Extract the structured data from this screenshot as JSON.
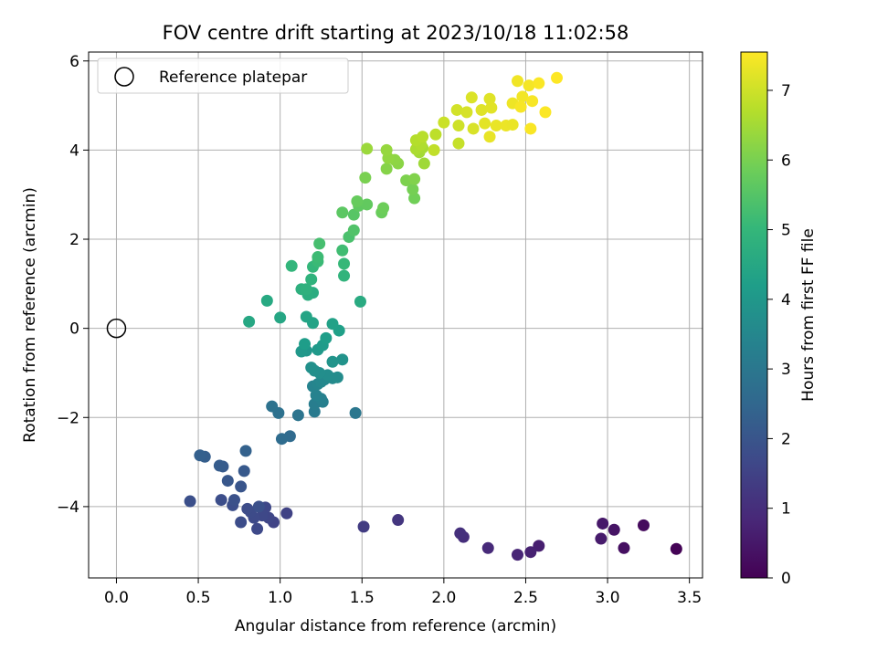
{
  "chart_data": {
    "type": "scatter",
    "title": "FOV centre drift starting at 2023/10/18 11:02:58",
    "xlabel": "Angular distance from reference (arcmin)",
    "ylabel": "Rotation from reference (arcmin)",
    "xlim": [
      -0.17,
      3.58
    ],
    "ylim": [
      -5.6,
      6.2
    ],
    "xticks": [
      "0.0",
      "0.5",
      "1.0",
      "1.5",
      "2.0",
      "2.5",
      "3.0",
      "3.5"
    ],
    "xtick_values": [
      0,
      0.5,
      1.0,
      1.5,
      2.0,
      2.5,
      3.0,
      3.5
    ],
    "yticks": [
      "−4",
      "−2",
      "0",
      "2",
      "4",
      "6"
    ],
    "ytick_values": [
      -4,
      -2,
      0,
      2,
      4,
      6
    ],
    "grid": true,
    "legend": {
      "position": "top-left",
      "entries": [
        "Reference platepar"
      ]
    },
    "reference_point": {
      "x": 0.0,
      "y": 0.0
    },
    "colorbar": {
      "label": "Hours from first FF file",
      "range": [
        0,
        7.55
      ],
      "ticks": [
        "0",
        "1",
        "2",
        "3",
        "4",
        "5",
        "6",
        "7"
      ],
      "tick_values": [
        0,
        1,
        2,
        3,
        4,
        5,
        6,
        7
      ],
      "colormap": "viridis",
      "colors": [
        "#440154",
        "#482878",
        "#3e4989",
        "#31688e",
        "#26828e",
        "#1f9e89",
        "#35b779",
        "#6ece58",
        "#b5de2b",
        "#fde725"
      ]
    },
    "points": [
      [
        3.42,
        -4.95,
        0.05
      ],
      [
        3.22,
        -4.42,
        0.2
      ],
      [
        3.1,
        -4.93,
        0.3
      ],
      [
        3.04,
        -4.52,
        0.4
      ],
      [
        2.97,
        -4.38,
        0.5
      ],
      [
        2.96,
        -4.72,
        0.55
      ],
      [
        2.58,
        -4.88,
        0.65
      ],
      [
        2.53,
        -5.02,
        0.7
      ],
      [
        2.45,
        -5.08,
        0.8
      ],
      [
        2.27,
        -4.93,
        0.9
      ],
      [
        2.12,
        -4.68,
        1.0
      ],
      [
        2.1,
        -4.6,
        1.05
      ],
      [
        1.72,
        -4.3,
        1.2
      ],
      [
        1.51,
        -4.45,
        1.35
      ],
      [
        1.04,
        -4.15,
        1.5
      ],
      [
        0.96,
        -4.35,
        1.55
      ],
      [
        0.93,
        -4.25,
        1.6
      ],
      [
        0.91,
        -4.02,
        1.62
      ],
      [
        0.89,
        -4.2,
        1.65
      ],
      [
        0.86,
        -4.5,
        1.68
      ],
      [
        0.84,
        -4.25,
        1.7
      ],
      [
        0.82,
        -4.12,
        1.72
      ],
      [
        0.8,
        -4.05,
        1.75
      ],
      [
        0.76,
        -4.35,
        1.78
      ],
      [
        0.71,
        -3.97,
        1.8
      ],
      [
        0.64,
        -3.85,
        1.82
      ],
      [
        0.45,
        -3.88,
        1.85
      ],
      [
        0.87,
        -4.0,
        1.88
      ],
      [
        0.72,
        -3.85,
        1.9
      ],
      [
        0.76,
        -3.55,
        2.0
      ],
      [
        0.68,
        -3.42,
        2.05
      ],
      [
        0.78,
        -3.2,
        2.1
      ],
      [
        0.65,
        -3.1,
        2.15
      ],
      [
        0.63,
        -3.08,
        2.2
      ],
      [
        0.54,
        -2.88,
        2.25
      ],
      [
        0.51,
        -2.85,
        2.3
      ],
      [
        0.79,
        -2.75,
        2.35
      ],
      [
        1.06,
        -2.42,
        2.6
      ],
      [
        1.01,
        -2.48,
        2.65
      ],
      [
        0.99,
        -1.9,
        2.8
      ],
      [
        0.95,
        -1.75,
        2.85
      ],
      [
        1.11,
        -1.95,
        2.9
      ],
      [
        1.46,
        -1.9,
        3.0
      ],
      [
        1.21,
        -1.87,
        3.1
      ],
      [
        1.21,
        -1.7,
        3.2
      ],
      [
        1.26,
        -1.65,
        3.25
      ],
      [
        1.25,
        -1.58,
        3.3
      ],
      [
        1.22,
        -1.5,
        3.35
      ],
      [
        1.2,
        -1.3,
        3.4
      ],
      [
        1.23,
        -1.25,
        3.45
      ],
      [
        1.25,
        -1.2,
        3.5
      ],
      [
        1.27,
        -1.15,
        3.55
      ],
      [
        1.32,
        -1.12,
        3.6
      ],
      [
        1.35,
        -1.1,
        3.65
      ],
      [
        1.29,
        -1.05,
        3.7
      ],
      [
        1.24,
        -1.0,
        3.72
      ],
      [
        1.21,
        -0.95,
        3.75
      ],
      [
        1.19,
        -0.88,
        3.78
      ],
      [
        1.38,
        -0.7,
        3.85
      ],
      [
        1.32,
        -0.75,
        3.88
      ],
      [
        1.16,
        -0.5,
        3.95
      ],
      [
        1.13,
        -0.52,
        4.0
      ],
      [
        1.23,
        -0.48,
        4.05
      ],
      [
        1.26,
        -0.38,
        4.1
      ],
      [
        1.15,
        -0.35,
        4.15
      ],
      [
        1.28,
        -0.22,
        4.2
      ],
      [
        1.36,
        -0.05,
        4.25
      ],
      [
        1.32,
        0.1,
        4.3
      ],
      [
        1.2,
        0.12,
        4.35
      ],
      [
        1.16,
        0.26,
        4.4
      ],
      [
        1.0,
        0.24,
        4.45
      ],
      [
        0.81,
        0.15,
        4.5
      ],
      [
        0.92,
        0.62,
        4.55
      ],
      [
        1.49,
        0.6,
        4.6
      ],
      [
        1.2,
        0.8,
        4.65
      ],
      [
        1.17,
        0.75,
        4.7
      ],
      [
        1.13,
        0.88,
        4.75
      ],
      [
        1.16,
        0.88,
        4.8
      ],
      [
        1.19,
        1.1,
        4.85
      ],
      [
        1.39,
        1.18,
        4.9
      ],
      [
        1.07,
        1.4,
        4.95
      ],
      [
        1.2,
        1.38,
        5.0
      ],
      [
        1.39,
        1.45,
        5.05
      ],
      [
        1.23,
        1.5,
        5.1
      ],
      [
        1.23,
        1.6,
        5.15
      ],
      [
        1.38,
        1.75,
        5.2
      ],
      [
        1.24,
        1.9,
        5.3
      ],
      [
        1.42,
        2.05,
        5.35
      ],
      [
        1.45,
        2.2,
        5.45
      ],
      [
        1.45,
        2.55,
        5.55
      ],
      [
        1.38,
        2.6,
        5.6
      ],
      [
        1.48,
        2.75,
        5.65
      ],
      [
        1.53,
        2.78,
        5.7
      ],
      [
        1.47,
        2.85,
        5.75
      ],
      [
        1.62,
        2.6,
        5.8
      ],
      [
        1.63,
        2.7,
        5.85
      ],
      [
        1.82,
        2.92,
        5.9
      ],
      [
        1.81,
        3.12,
        5.95
      ],
      [
        1.52,
        3.38,
        6.0
      ],
      [
        1.77,
        3.32,
        6.05
      ],
      [
        1.82,
        3.35,
        6.1
      ],
      [
        1.65,
        3.58,
        6.15
      ],
      [
        1.72,
        3.7,
        6.2
      ],
      [
        1.7,
        3.78,
        6.25
      ],
      [
        1.66,
        3.82,
        6.3
      ],
      [
        1.65,
        4.0,
        6.35
      ],
      [
        1.53,
        4.03,
        6.4
      ],
      [
        1.88,
        3.7,
        6.45
      ],
      [
        1.85,
        3.95,
        6.5
      ],
      [
        1.87,
        4.05,
        6.55
      ],
      [
        1.83,
        4.02,
        6.6
      ],
      [
        1.86,
        4.12,
        6.65
      ],
      [
        1.83,
        4.22,
        6.7
      ],
      [
        1.87,
        4.3,
        6.75
      ],
      [
        1.95,
        4.35,
        6.8
      ],
      [
        1.94,
        4.0,
        6.85
      ],
      [
        2.09,
        4.15,
        6.9
      ],
      [
        2.0,
        4.62,
        6.95
      ],
      [
        2.09,
        4.55,
        7.0
      ],
      [
        2.08,
        4.9,
        7.05
      ],
      [
        2.14,
        4.85,
        7.1
      ],
      [
        2.17,
        5.18,
        7.15
      ],
      [
        2.28,
        5.15,
        7.2
      ],
      [
        2.25,
        4.6,
        7.25
      ],
      [
        2.28,
        4.3,
        7.3
      ],
      [
        2.32,
        4.55,
        7.32
      ],
      [
        2.38,
        4.55,
        7.35
      ],
      [
        2.42,
        5.05,
        7.38
      ],
      [
        2.45,
        5.55,
        7.4
      ],
      [
        2.48,
        5.2,
        7.42
      ],
      [
        2.52,
        5.45,
        7.45
      ],
      [
        2.54,
        5.1,
        7.48
      ],
      [
        2.47,
        4.97,
        7.48
      ],
      [
        2.53,
        4.48,
        7.5
      ],
      [
        2.58,
        5.5,
        7.52
      ],
      [
        2.62,
        4.85,
        7.53
      ],
      [
        2.69,
        5.62,
        7.55
      ],
      [
        2.23,
        4.9,
        7.2
      ],
      [
        2.29,
        4.95,
        7.22
      ],
      [
        2.42,
        4.57,
        7.33
      ],
      [
        2.18,
        4.48,
        7.12
      ]
    ]
  }
}
